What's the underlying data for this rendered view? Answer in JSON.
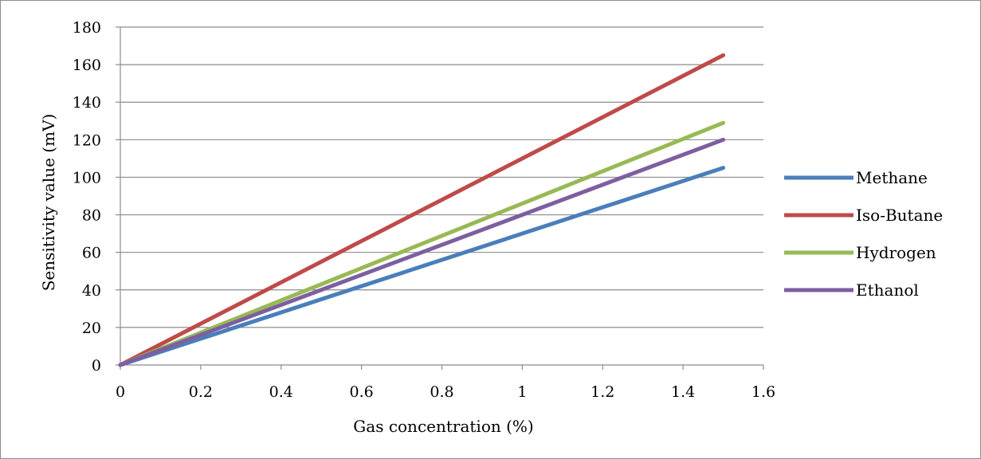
{
  "chart_data": {
    "type": "line",
    "title": "",
    "xlabel": "Gas concentration (%)",
    "ylabel": "Sensitivity value (mV)",
    "xlim": [
      0,
      1.6
    ],
    "ylim": [
      0,
      180
    ],
    "xticks": [
      "0",
      "0.2",
      "0.4",
      "0.6",
      "0.8",
      "1",
      "1.2",
      "1.4",
      "1.6"
    ],
    "yticks": [
      "0",
      "20",
      "40",
      "60",
      "80",
      "100",
      "120",
      "140",
      "160",
      "180"
    ],
    "grid": "horizontal",
    "legend_position": "right",
    "series": [
      {
        "name": "Methane",
        "color": "#4a7ebb",
        "x": [
          0,
          1.5
        ],
        "y": [
          0,
          105
        ]
      },
      {
        "name": "Iso-Butane",
        "color": "#be4b48",
        "x": [
          0,
          1.5
        ],
        "y": [
          0,
          165
        ]
      },
      {
        "name": "Hydrogen",
        "color": "#98b954",
        "x": [
          0,
          1.5
        ],
        "y": [
          0,
          129
        ]
      },
      {
        "name": "Ethanol",
        "color": "#7d5fa0",
        "x": [
          0,
          1.5
        ],
        "y": [
          0,
          120
        ]
      }
    ]
  }
}
